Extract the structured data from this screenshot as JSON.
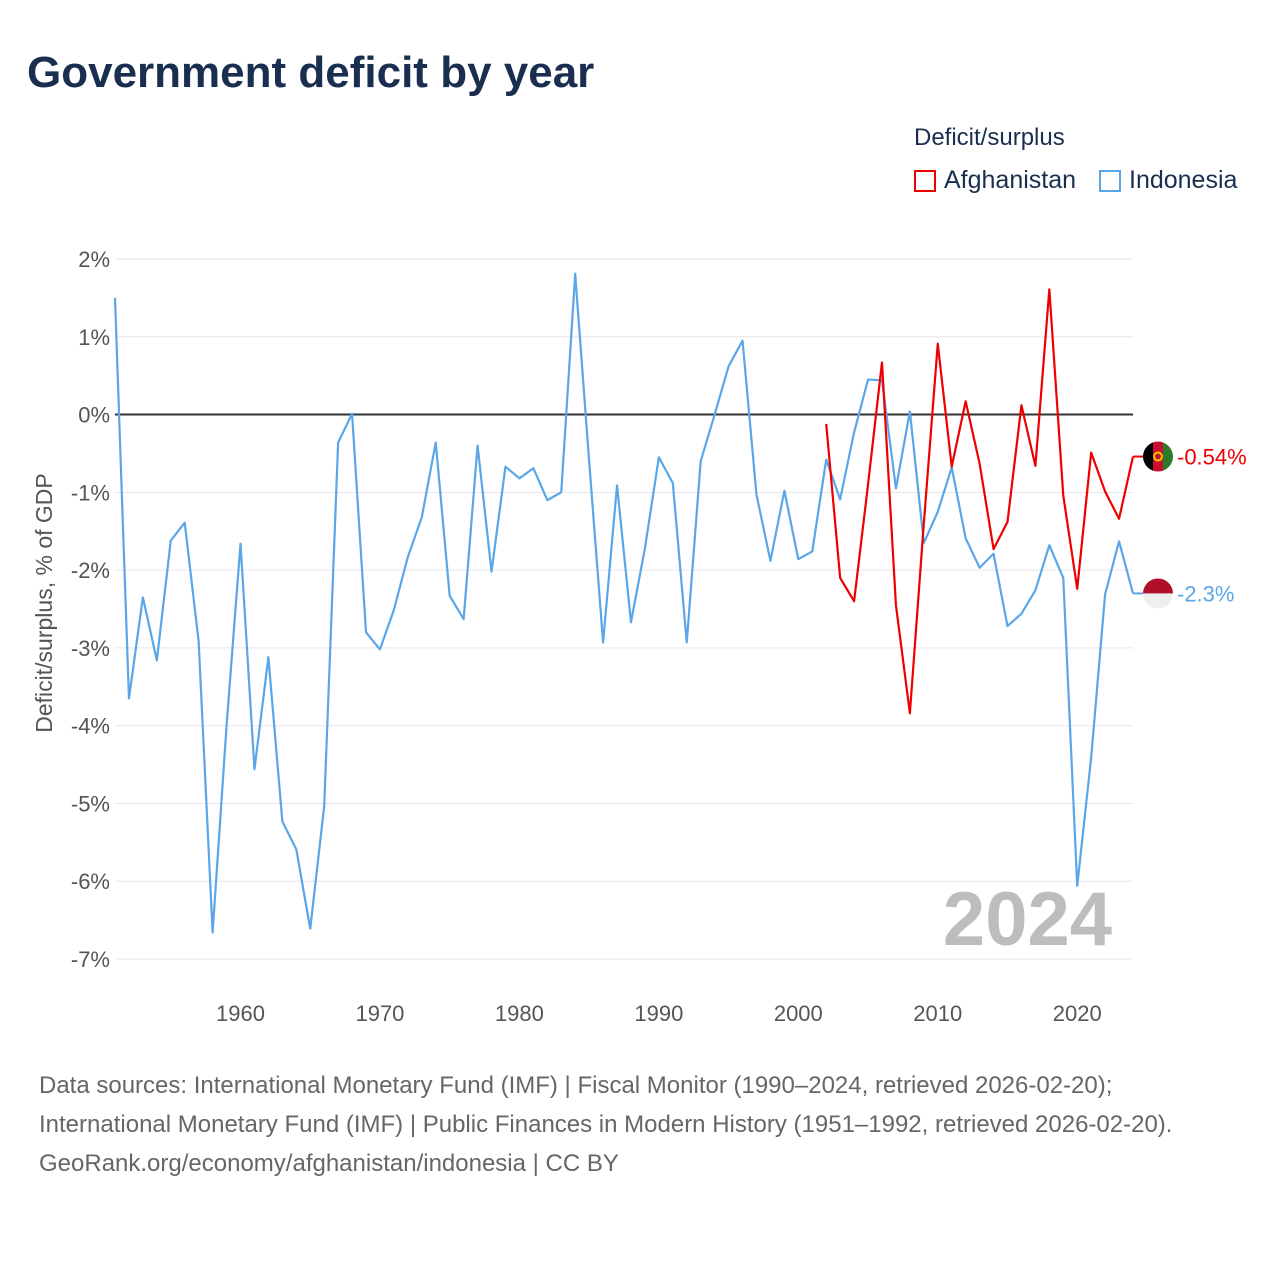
{
  "title": "Government deficit by year",
  "legend": {
    "title": "Deficit/surplus",
    "items": [
      "Afghanistan",
      "Indonesia"
    ]
  },
  "watermark_year": "2024",
  "footer": {
    "line1": "Data sources: International Monetary Fund (IMF) | Fiscal Monitor (1990–2024, retrieved 2026-02-20); International Monetary Fund (IMF) | Public Finances in Modern History (1951–1992, retrieved 2026-02-20).",
    "line2": "GeoRank.org/economy/afghanistan/indonesia | CC BY"
  },
  "chart_data": {
    "type": "line",
    "title": "Government deficit by year",
    "xlabel": "",
    "ylabel": "Deficit/surplus, % of GDP",
    "xlim": [
      1951,
      2024
    ],
    "ylim": [
      -7,
      2
    ],
    "yticks": [
      2,
      1,
      0,
      -1,
      -2,
      -3,
      -4,
      -5,
      -6,
      -7
    ],
    "ytick_labels": [
      "2%",
      "1%",
      "0%",
      "-1%",
      "-2%",
      "-3%",
      "-4%",
      "-5%",
      "-6%",
      "-7%"
    ],
    "xticks": [
      1960,
      1970,
      1980,
      1990,
      2000,
      2010,
      2020
    ],
    "grid": true,
    "legend_position": "top-right",
    "series": [
      {
        "name": "Afghanistan",
        "color": "#ee0000",
        "end_label": "-0.54%",
        "start_year": 2002,
        "values": [
          -0.12,
          -2.1,
          -2.4,
          -0.9,
          0.67,
          -2.45,
          -3.84,
          -1.4,
          0.91,
          -0.67,
          0.17,
          -0.63,
          -1.73,
          -1.38,
          0.12,
          -0.66,
          1.61,
          -1.04,
          -2.24,
          -0.49,
          -0.99,
          -1.34,
          -0.54
        ]
      },
      {
        "name": "Indonesia",
        "color": "#5aa6e8",
        "end_label": "-2.3%",
        "start_year": 1951,
        "values": [
          1.5,
          -3.65,
          -2.35,
          -3.16,
          -1.62,
          -1.39,
          -2.92,
          -6.66,
          -4.0,
          -1.66,
          -4.56,
          -3.12,
          -5.23,
          -5.59,
          -6.61,
          -5.04,
          -0.36,
          0.01,
          -2.8,
          -3.02,
          -2.51,
          -1.83,
          -1.32,
          -0.36,
          -2.33,
          -2.63,
          -0.4,
          -2.02,
          -0.67,
          -0.82,
          -0.69,
          -1.1,
          -1.0,
          1.81,
          -0.6,
          -2.93,
          -0.91,
          -2.67,
          -1.72,
          -0.55,
          -0.88,
          -2.93,
          -0.6,
          0.0,
          0.62,
          0.95,
          -1.03,
          -1.88,
          -0.98,
          -1.86,
          -1.76,
          -0.58,
          -1.09,
          -0.23,
          0.45,
          0.44,
          -0.95,
          0.04,
          -1.65,
          -1.25,
          -0.68,
          -1.59,
          -1.97,
          -1.79,
          -2.72,
          -2.56,
          -2.26,
          -1.68,
          -2.1,
          -6.06,
          -4.41,
          -2.31,
          -1.63,
          -2.3
        ]
      }
    ]
  }
}
